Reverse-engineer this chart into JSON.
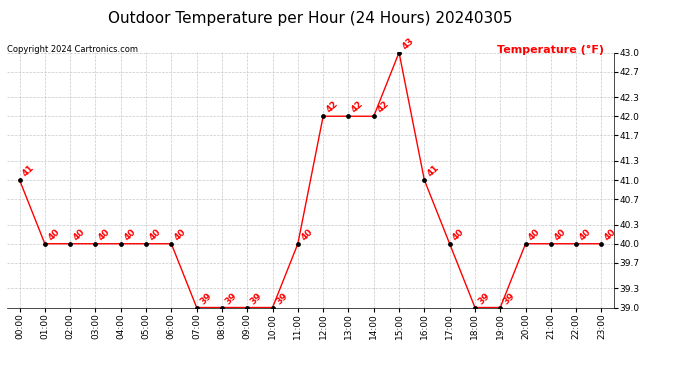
{
  "title": "Outdoor Temperature per Hour (24 Hours) 20240305",
  "copyright_text": "Copyright 2024 Cartronics.com",
  "legend_label": "Temperature (°F)",
  "hours": [
    0,
    1,
    2,
    3,
    4,
    5,
    6,
    7,
    8,
    9,
    10,
    11,
    12,
    13,
    14,
    15,
    16,
    17,
    18,
    19,
    20,
    21,
    22,
    23
  ],
  "hour_labels": [
    "00:00",
    "01:00",
    "02:00",
    "03:00",
    "04:00",
    "05:00",
    "06:00",
    "07:00",
    "08:00",
    "09:00",
    "10:00",
    "11:00",
    "12:00",
    "13:00",
    "14:00",
    "15:00",
    "16:00",
    "17:00",
    "18:00",
    "19:00",
    "20:00",
    "21:00",
    "22:00",
    "23:00"
  ],
  "temperatures": [
    41,
    40,
    40,
    40,
    40,
    40,
    40,
    39,
    39,
    39,
    39,
    40,
    42,
    42,
    42,
    43,
    41,
    40,
    39,
    39,
    40,
    40,
    40,
    40
  ],
  "ylim_min": 39.0,
  "ylim_max": 43.0,
  "yticks": [
    39.0,
    39.3,
    39.7,
    40.0,
    40.3,
    40.7,
    41.0,
    41.3,
    41.7,
    42.0,
    42.3,
    42.7,
    43.0
  ],
  "line_color": "red",
  "marker_color": "black",
  "title_color": "black",
  "copyright_color": "black",
  "legend_color": "red",
  "bg_color": "white",
  "grid_color": "#bbbbbb",
  "title_fontsize": 11,
  "label_fontsize": 6.5,
  "annotation_fontsize": 6.5,
  "copyright_fontsize": 6,
  "legend_fontsize": 8
}
